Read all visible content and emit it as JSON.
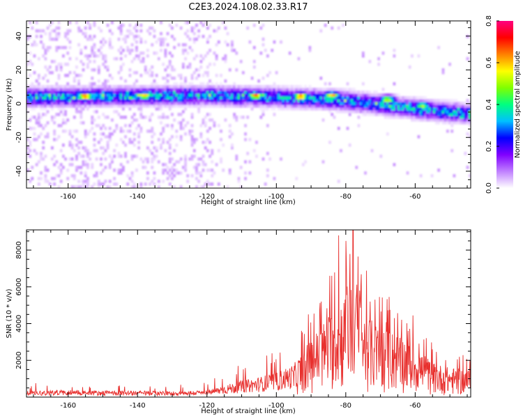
{
  "title": "C2E3.2024.108.02.33.R17",
  "chart_data": [
    {
      "type": "heatmap",
      "xlabel": "Height of straight line (km)",
      "ylabel": "Frequency (Hz)",
      "xlim": [
        -172,
        -44
      ],
      "ylim": [
        -50,
        49
      ],
      "xticks": [
        -160,
        -140,
        -120,
        -100,
        -80,
        -60
      ],
      "yticks": [
        -40,
        -20,
        0,
        20,
        40
      ],
      "xtick_labels": [
        "-160",
        "-140",
        "-120",
        "-100",
        "-80",
        "-60"
      ],
      "ytick_labels": [
        "-40",
        "-20",
        "0",
        "20",
        "40"
      ],
      "colorbar": {
        "label": "Normalized spectral amplitude",
        "range": [
          0,
          0.8
        ],
        "ticks": [
          0,
          0.2,
          0.4,
          0.6,
          0.8
        ],
        "tick_labels": [
          "0.0",
          "0.2",
          "0.4",
          "0.6",
          "0.8"
        ],
        "colormap": [
          "#ffffff",
          "#c080ff",
          "#8000ff",
          "#0000ff",
          "#00c0ff",
          "#00ff80",
          "#80ff00",
          "#ffff00",
          "#ff8000",
          "#ff0000",
          "#ff0080"
        ]
      },
      "band_center_hz": [
        [
          -172,
          4
        ],
        [
          -120,
          5
        ],
        [
          -100,
          4
        ],
        [
          -80,
          2
        ],
        [
          -60,
          -3
        ],
        [
          -44,
          -6
        ]
      ],
      "band_halfwidth_hz": 4,
      "hot_spots": [
        [
          -155,
          4.5,
          0.78
        ],
        [
          -138,
          5,
          0.7
        ],
        [
          -106,
          5,
          0.72
        ],
        [
          -93,
          4.5,
          0.75
        ],
        [
          -84,
          5,
          0.7
        ],
        [
          -68,
          2.5,
          0.6
        ],
        [
          -58,
          -1,
          0.55
        ]
      ],
      "grid": false
    },
    {
      "type": "line",
      "xlabel": "Height of straight line (km)",
      "ylabel": "SNR (10 * v/v)",
      "xlim": [
        -172,
        -44
      ],
      "ylim": [
        0,
        9100
      ],
      "xticks": [
        -160,
        -140,
        -120,
        -100,
        -80,
        -60
      ],
      "yticks": [
        2000,
        4000,
        6000,
        8000
      ],
      "xtick_labels": [
        "-160",
        "-140",
        "-120",
        "-100",
        "-80",
        "-60"
      ],
      "ytick_labels": [
        "2000",
        "4000",
        "6000",
        "8000"
      ],
      "color": "#e8302e",
      "envelope": {
        "x": [
          -172,
          -160,
          -150,
          -140,
          -130,
          -120,
          -115,
          -110,
          -105,
          -100,
          -95,
          -90,
          -85,
          -80,
          -78,
          -75,
          -70,
          -65,
          -60,
          -55,
          -50,
          -44
        ],
        "y": [
          350,
          400,
          350,
          350,
          320,
          380,
          650,
          900,
          1100,
          1350,
          1800,
          3200,
          4500,
          5800,
          7500,
          4600,
          3800,
          3500,
          2800,
          1900,
          1600,
          1500
        ]
      },
      "peaks": [
        [
          -87,
          5200
        ],
        [
          -84,
          6600
        ],
        [
          -82,
          8800
        ],
        [
          -80,
          8500
        ],
        [
          -78,
          9100
        ],
        [
          -76,
          5800
        ],
        [
          -73,
          5200
        ],
        [
          -66,
          4300
        ],
        [
          -62,
          3600
        ],
        [
          -55,
          2600
        ],
        [
          -44,
          2400
        ]
      ],
      "grid": false
    }
  ]
}
